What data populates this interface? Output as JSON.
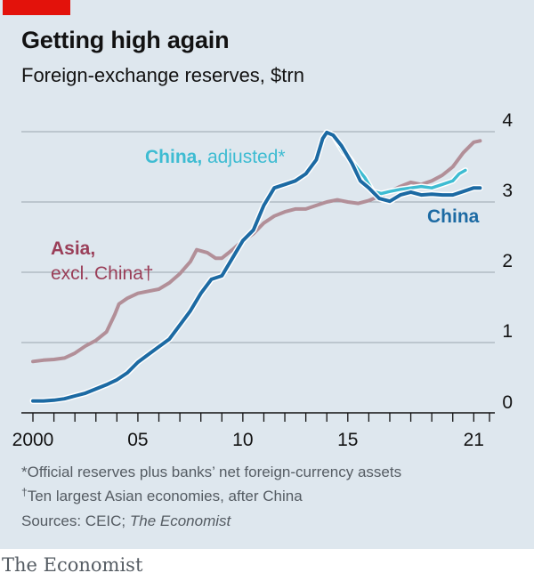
{
  "header": {
    "title": "Getting high again",
    "subtitle": "Foreign-exchange reserves, $trn"
  },
  "footnotes": {
    "note1": "*Official reserves plus banks’ net foreign-currency assets",
    "note2_mark": "†",
    "note2": "Ten largest Asian economies, after China",
    "sources_prefix": "Sources: CEIC; ",
    "sources_italic": "The Economist"
  },
  "brand": "The Economist",
  "colors": {
    "background": "#dee7ee",
    "brand_red": "#e3120b",
    "china": "#1c6aa3",
    "china_adjusted": "#3ebcd2",
    "asia": "#b28f98",
    "asia_label": "#9a3e58",
    "grid": "#9aa6ae"
  },
  "chart_data": {
    "type": "line",
    "title": "Getting high again",
    "ylabel": "Foreign-exchange reserves, $trn",
    "ylim": [
      0,
      4
    ],
    "xlim": [
      2000,
      2021.75
    ],
    "yticks": [
      "0",
      "1",
      "2",
      "3",
      "4"
    ],
    "xticks": [
      {
        "value": 2000,
        "label": "2000"
      },
      {
        "value": 2005,
        "label": "05"
      },
      {
        "value": 2010,
        "label": "10"
      },
      {
        "value": 2015,
        "label": "15"
      },
      {
        "value": 2021,
        "label": "21"
      }
    ],
    "series": [
      {
        "name": "Asia, excl. China†",
        "label_lines": [
          "Asia,",
          "excl. China†"
        ],
        "color": "#b28f98",
        "points": [
          [
            2000.0,
            0.73
          ],
          [
            2000.5,
            0.75
          ],
          [
            2001.0,
            0.76
          ],
          [
            2001.5,
            0.78
          ],
          [
            2002.0,
            0.85
          ],
          [
            2002.5,
            0.95
          ],
          [
            2003.0,
            1.03
          ],
          [
            2003.5,
            1.15
          ],
          [
            2003.9,
            1.4
          ],
          [
            2004.1,
            1.55
          ],
          [
            2004.5,
            1.63
          ],
          [
            2005.0,
            1.7
          ],
          [
            2005.5,
            1.73
          ],
          [
            2006.0,
            1.76
          ],
          [
            2006.5,
            1.85
          ],
          [
            2007.0,
            1.98
          ],
          [
            2007.5,
            2.15
          ],
          [
            2007.8,
            2.32
          ],
          [
            2008.3,
            2.28
          ],
          [
            2008.7,
            2.2
          ],
          [
            2009.0,
            2.2
          ],
          [
            2009.5,
            2.32
          ],
          [
            2010.0,
            2.45
          ],
          [
            2010.5,
            2.55
          ],
          [
            2011.0,
            2.7
          ],
          [
            2011.5,
            2.8
          ],
          [
            2012.0,
            2.86
          ],
          [
            2012.5,
            2.9
          ],
          [
            2013.0,
            2.9
          ],
          [
            2013.5,
            2.95
          ],
          [
            2014.0,
            3.0
          ],
          [
            2014.5,
            3.03
          ],
          [
            2015.0,
            3.0
          ],
          [
            2015.5,
            2.98
          ],
          [
            2016.0,
            3.02
          ],
          [
            2016.5,
            3.08
          ],
          [
            2017.0,
            3.15
          ],
          [
            2017.5,
            3.22
          ],
          [
            2018.0,
            3.28
          ],
          [
            2018.5,
            3.25
          ],
          [
            2019.0,
            3.3
          ],
          [
            2019.5,
            3.38
          ],
          [
            2020.0,
            3.5
          ],
          [
            2020.5,
            3.7
          ],
          [
            2021.0,
            3.85
          ],
          [
            2021.3,
            3.87
          ]
        ]
      },
      {
        "name": "China",
        "label": "China",
        "color": "#1c6aa3",
        "points": [
          [
            2000.0,
            0.17
          ],
          [
            2000.5,
            0.17
          ],
          [
            2001.0,
            0.18
          ],
          [
            2001.5,
            0.2
          ],
          [
            2002.0,
            0.24
          ],
          [
            2002.5,
            0.28
          ],
          [
            2003.0,
            0.34
          ],
          [
            2003.5,
            0.4
          ],
          [
            2004.0,
            0.47
          ],
          [
            2004.5,
            0.57
          ],
          [
            2005.0,
            0.72
          ],
          [
            2005.5,
            0.83
          ],
          [
            2006.0,
            0.94
          ],
          [
            2006.5,
            1.05
          ],
          [
            2007.0,
            1.25
          ],
          [
            2007.5,
            1.45
          ],
          [
            2008.0,
            1.7
          ],
          [
            2008.5,
            1.9
          ],
          [
            2009.0,
            1.95
          ],
          [
            2009.5,
            2.2
          ],
          [
            2010.0,
            2.45
          ],
          [
            2010.5,
            2.6
          ],
          [
            2011.0,
            2.95
          ],
          [
            2011.5,
            3.2
          ],
          [
            2012.0,
            3.25
          ],
          [
            2012.5,
            3.3
          ],
          [
            2013.0,
            3.4
          ],
          [
            2013.5,
            3.6
          ],
          [
            2013.8,
            3.9
          ],
          [
            2014.0,
            3.99
          ],
          [
            2014.3,
            3.95
          ],
          [
            2014.7,
            3.8
          ],
          [
            2015.2,
            3.55
          ],
          [
            2015.6,
            3.3
          ],
          [
            2016.0,
            3.2
          ],
          [
            2016.5,
            3.05
          ],
          [
            2017.0,
            3.01
          ],
          [
            2017.5,
            3.1
          ],
          [
            2018.0,
            3.14
          ],
          [
            2018.5,
            3.1
          ],
          [
            2019.0,
            3.11
          ],
          [
            2019.5,
            3.1
          ],
          [
            2020.0,
            3.1
          ],
          [
            2020.5,
            3.15
          ],
          [
            2021.0,
            3.2
          ],
          [
            2021.3,
            3.2
          ]
        ]
      },
      {
        "name": "China, adjusted*",
        "label_bold": "China,",
        "label_rest": " adjusted*",
        "color": "#3ebcd2",
        "points": [
          [
            2014.4,
            3.9
          ],
          [
            2014.8,
            3.7
          ],
          [
            2015.1,
            3.62
          ],
          [
            2015.4,
            3.5
          ],
          [
            2015.8,
            3.35
          ],
          [
            2016.2,
            3.15
          ],
          [
            2016.6,
            3.12
          ],
          [
            2017.0,
            3.15
          ],
          [
            2017.5,
            3.18
          ],
          [
            2018.0,
            3.2
          ],
          [
            2018.5,
            3.22
          ],
          [
            2019.0,
            3.2
          ],
          [
            2019.5,
            3.25
          ],
          [
            2020.0,
            3.3
          ],
          [
            2020.3,
            3.4
          ],
          [
            2020.6,
            3.45
          ]
        ]
      }
    ]
  }
}
